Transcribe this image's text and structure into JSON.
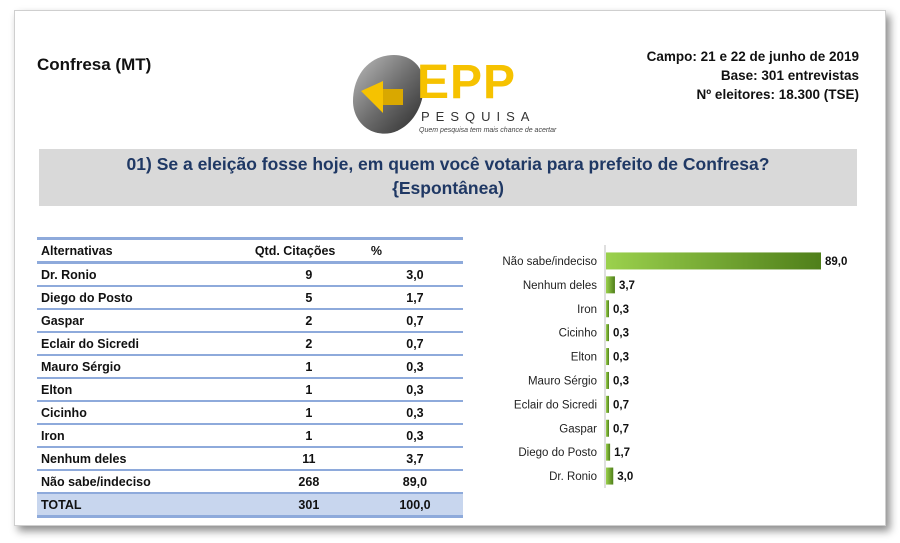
{
  "header": {
    "city": "Confresa (MT)",
    "campo": "Campo: 21 e 22 de junho de 2019",
    "base": "Base: 301 entrevistas",
    "eleitores": "Nº eleitores: 18.300  (TSE)"
  },
  "logo": {
    "name": "EPP",
    "sub": "PESQUISA",
    "tagline": "Quem pesquisa tem mais chance de acertar"
  },
  "question": {
    "line1": "01) Se a eleição fosse hoje, em quem você votaria para prefeito de Confresa?",
    "line2": "{Espontânea)"
  },
  "table": {
    "headers": [
      "Alternativas",
      "Qtd. Citações",
      "%"
    ],
    "rows": [
      [
        "Dr. Ronio",
        "9",
        "3,0"
      ],
      [
        "Diego do Posto",
        "5",
        "1,7"
      ],
      [
        "Gaspar",
        "2",
        "0,7"
      ],
      [
        "Eclair do Sicredi",
        "2",
        "0,7"
      ],
      [
        "Mauro Sérgio",
        "1",
        "0,3"
      ],
      [
        "Elton",
        "1",
        "0,3"
      ],
      [
        "Cicinho",
        "1",
        "0,3"
      ],
      [
        "Iron",
        "1",
        "0,3"
      ],
      [
        "Nenhum deles",
        "11",
        "3,7"
      ],
      [
        "Não sabe/indeciso",
        "268",
        "89,0"
      ]
    ],
    "total": [
      "TOTAL",
      "301",
      "100,0"
    ]
  },
  "chart_data": {
    "type": "bar",
    "orientation": "horizontal",
    "categories": [
      "Não sabe/indeciso",
      "Nenhum deles",
      "Iron",
      "Cicinho",
      "Elton",
      "Mauro Sérgio",
      "Eclair do Sicredi",
      "Gaspar",
      "Diego do Posto",
      "Dr. Ronio"
    ],
    "values": [
      89.0,
      3.7,
      0.3,
      0.3,
      0.3,
      0.3,
      0.7,
      0.7,
      1.7,
      3.0
    ],
    "labels": [
      "89,0",
      "3,7",
      "0,3",
      "0,3",
      "0,3",
      "0,3",
      "0,7",
      "0,7",
      "1,7",
      "3,0"
    ],
    "xlim": [
      0,
      89.0
    ],
    "colors": {
      "bar_light": "#9bd14d",
      "bar_dark": "#4f7f1a"
    }
  }
}
